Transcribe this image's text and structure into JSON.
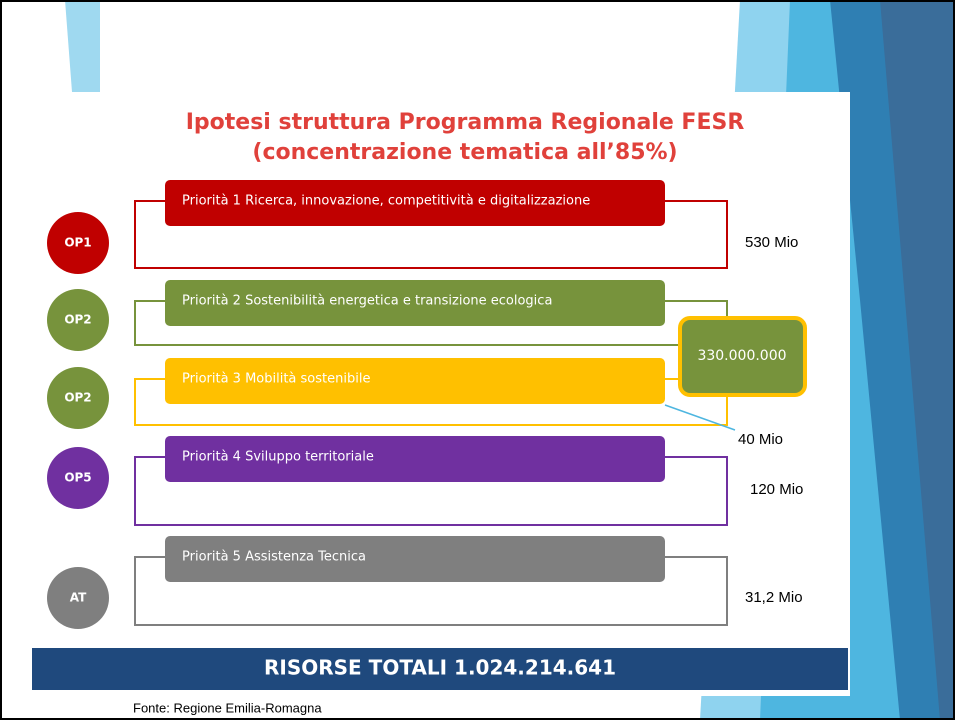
{
  "title": [
    "Ipotesi struttura Programma Regionale FESR",
    "(concentrazione tematica all’85%)"
  ],
  "priorities": [
    {
      "op": "OP1",
      "label": "Priorità 1 Ricerca, innovazione, competitività e digitalizzazione",
      "amount": "530 Mio",
      "color": "#c00000"
    },
    {
      "op": "OP2",
      "label": "Priorità 2 Sostenibilità energetica e transizione ecologica",
      "amount": null,
      "color": "#77933c"
    },
    {
      "op": "OP2",
      "label": "Priorità 3 Mobilità sostenibile",
      "amount": "40 Mio",
      "color": "#ffc000"
    },
    {
      "op": "OP5",
      "label": "Priorità 4 Sviluppo territoriale",
      "amount": "120 Mio",
      "color": "#7030a0"
    },
    {
      "op": "AT",
      "label": "Priorità 5 Assistenza Tecnica",
      "amount": "31,2 Mio",
      "color": "#7f7f7f"
    }
  ],
  "callout": "330.000.000",
  "total": "RISORSE TOTALI 1.024.214.641",
  "source": "Fonte: Regione Emilia-Romagna"
}
